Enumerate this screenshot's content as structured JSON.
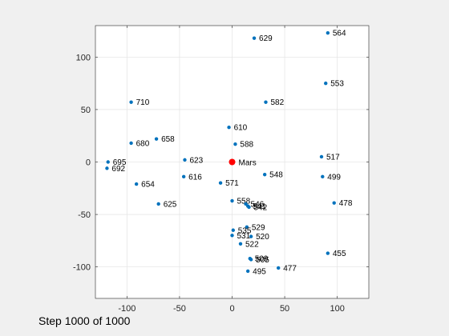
{
  "chart_data": {
    "type": "scatter",
    "xlim": [
      -130,
      130
    ],
    "ylim": [
      -130,
      130
    ],
    "xticks": [
      -100,
      -50,
      0,
      50,
      100
    ],
    "yticks": [
      -100,
      -50,
      0,
      50,
      100
    ],
    "grid": true,
    "colors": {
      "points": "#0072BD",
      "center": "#ff0000",
      "grid": "#e6e6e6",
      "axes_bg": "#ffffff"
    },
    "center": {
      "label": "Mars",
      "x": 0,
      "y": 0
    },
    "points": [
      {
        "label": "564",
        "x": 91,
        "y": 123
      },
      {
        "label": "629",
        "x": 21,
        "y": 118
      },
      {
        "label": "553",
        "x": 89,
        "y": 75
      },
      {
        "label": "710",
        "x": -96,
        "y": 57
      },
      {
        "label": "582",
        "x": 32,
        "y": 57
      },
      {
        "label": "610",
        "x": -3,
        "y": 33
      },
      {
        "label": "680",
        "x": -96,
        "y": 18
      },
      {
        "label": "658",
        "x": -72,
        "y": 22
      },
      {
        "label": "588",
        "x": 3,
        "y": 17
      },
      {
        "label": "517",
        "x": 85,
        "y": 5
      },
      {
        "label": "695",
        "x": -118,
        "y": 0
      },
      {
        "label": "623",
        "x": -45,
        "y": 2
      },
      {
        "label": "692",
        "x": -119,
        "y": -6
      },
      {
        "label": "616",
        "x": -46,
        "y": -14
      },
      {
        "label": "548",
        "x": 31,
        "y": -12
      },
      {
        "label": "499",
        "x": 86,
        "y": -14
      },
      {
        "label": "654",
        "x": -91,
        "y": -21
      },
      {
        "label": "571",
        "x": -11,
        "y": -20
      },
      {
        "label": "625",
        "x": -70,
        "y": -40
      },
      {
        "label": "558",
        "x": 0,
        "y": -37
      },
      {
        "label": "546",
        "x": 13,
        "y": -40
      },
      {
        "label": "541",
        "x": 15,
        "y": -42
      },
      {
        "label": "542",
        "x": 16,
        "y": -43
      },
      {
        "label": "478",
        "x": 97,
        "y": -39
      },
      {
        "label": "529",
        "x": 14,
        "y": -62
      },
      {
        "label": "535",
        "x": 1,
        "y": -65
      },
      {
        "label": "531",
        "x": 0,
        "y": -70
      },
      {
        "label": "520",
        "x": 18,
        "y": -71
      },
      {
        "label": "522",
        "x": 8,
        "y": -78
      },
      {
        "label": "455",
        "x": 91,
        "y": -87
      },
      {
        "label": "509",
        "x": 17,
        "y": -92
      },
      {
        "label": "505",
        "x": 18,
        "y": -93
      },
      {
        "label": "495",
        "x": 15,
        "y": -104
      },
      {
        "label": "477",
        "x": 44,
        "y": -101
      }
    ]
  },
  "status": {
    "step_text": "Step 1000 of 1000"
  }
}
